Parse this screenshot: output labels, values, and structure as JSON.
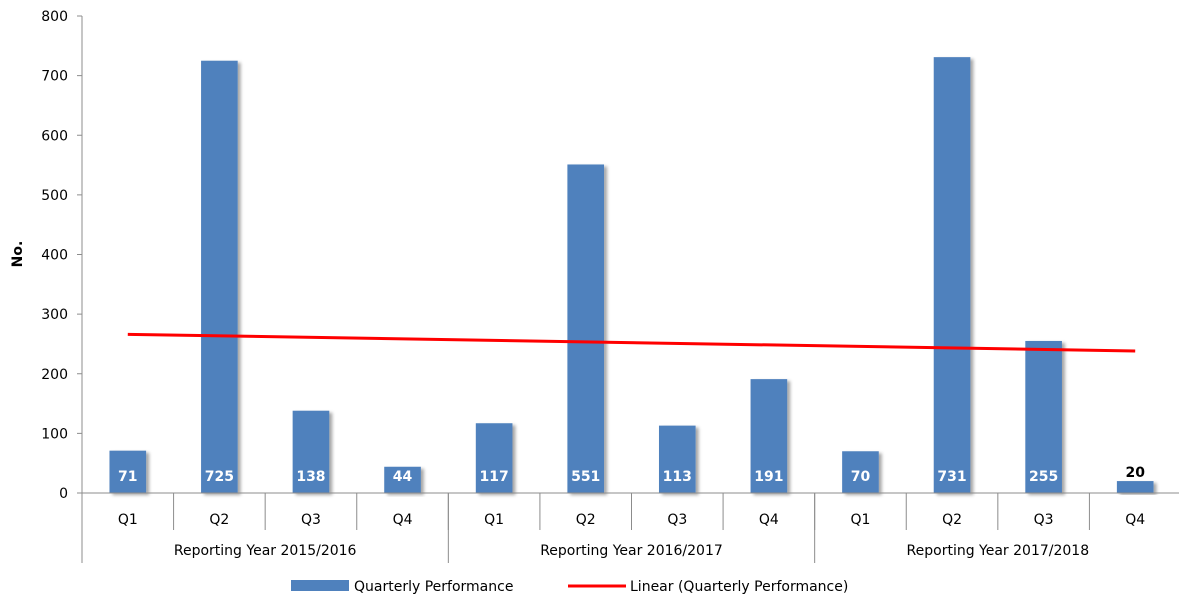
{
  "chart_data": {
    "type": "bar",
    "ylabel": "No.",
    "ylim": [
      0,
      800
    ],
    "yticks": [
      "0",
      "100",
      "200",
      "300",
      "400",
      "500",
      "600",
      "700",
      "800"
    ],
    "categories": [
      "Q1",
      "Q2",
      "Q3",
      "Q4",
      "Q1",
      "Q2",
      "Q3",
      "Q4",
      "Q1",
      "Q2",
      "Q3",
      "Q4"
    ],
    "groups": [
      {
        "label": "Reporting Year 2015/2016",
        "count": 4
      },
      {
        "label": "Reporting Year 2016/2017",
        "count": 4
      },
      {
        "label": "Reporting Year 2017/2018",
        "count": 4
      }
    ],
    "series": [
      {
        "name": "Quarterly Performance",
        "values": [
          71,
          725,
          138,
          44,
          117,
          551,
          113,
          191,
          70,
          731,
          255,
          20
        ],
        "color": "#4f81bd"
      }
    ],
    "trendline": {
      "name": "Linear (Quarterly Performance)",
      "type": "linear",
      "color": "#ff0000"
    },
    "legend_position": "bottom",
    "grid": false
  }
}
